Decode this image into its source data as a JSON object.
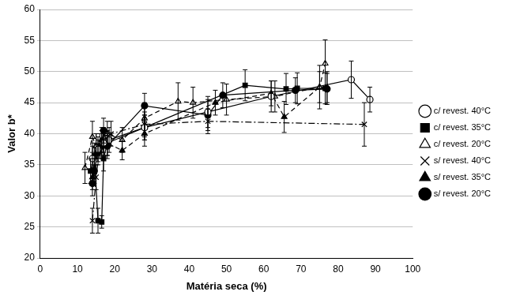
{
  "chart_data": {
    "type": "scatter",
    "x_label": "Matéria seca (%)",
    "y_label": "Valor b*",
    "xlim": [
      0,
      100
    ],
    "xticks": [
      0,
      10,
      20,
      30,
      40,
      50,
      60,
      70,
      80,
      90,
      100
    ],
    "ylim": [
      20,
      60
    ],
    "yticks": [
      20,
      25,
      30,
      35,
      40,
      45,
      50,
      55,
      60
    ],
    "grid": "y",
    "legend": "right",
    "series": [
      {
        "name": "c/ revest. 40°C",
        "color": "#000000",
        "marker": "circle_open",
        "line_style": "solid",
        "x": [
          14,
          15.5,
          17,
          18.5,
          28,
          45,
          62,
          83.5,
          88.5
        ],
        "values": [
          36,
          37.5,
          38.5,
          39,
          41,
          43.5,
          46,
          48.7,
          45.5
        ],
        "errors": [
          2,
          2,
          2,
          2,
          2,
          2.5,
          2.5,
          3,
          2
        ]
      },
      {
        "name": "c/ revest. 35°C",
        "color": "#000000",
        "marker": "square",
        "line_style": "solid",
        "x": [
          13.5,
          14.5,
          15.5,
          16.5,
          17,
          18,
          28,
          55,
          66,
          69,
          76.5
        ],
        "values": [
          34,
          36.5,
          26,
          25.8,
          36,
          38.5,
          41,
          47.8,
          47.2,
          47.3,
          47.3
        ],
        "errors": [
          2,
          2,
          2,
          1,
          2,
          2,
          2,
          2.5,
          2.5,
          2.5,
          2.5
        ]
      },
      {
        "name": "c/ revest. 20°C",
        "color": "#000000",
        "marker": "triangle_open",
        "line_style": "dashed",
        "x": [
          12,
          14,
          15,
          16.5,
          18,
          22,
          28,
          37,
          41,
          50,
          63,
          75,
          76.5
        ],
        "values": [
          34.5,
          39.5,
          38,
          38.5,
          40,
          39,
          42.5,
          45.2,
          45,
          45.5,
          46,
          47.5,
          51.3
        ],
        "errors": [
          2.5,
          2.5,
          2,
          2,
          2,
          2,
          2.5,
          3,
          2.5,
          2.5,
          2.5,
          3.5,
          3.8
        ]
      },
      {
        "name": "s/ revest. 40°C",
        "color": "#000000",
        "marker": "cross",
        "line_style": "dashdot",
        "x": [
          14,
          15,
          16,
          17,
          19,
          28,
          45,
          87
        ],
        "values": [
          26,
          33,
          38,
          39,
          40,
          41.5,
          42,
          41.5
        ],
        "errors": [
          2,
          2,
          2,
          2,
          2,
          2,
          2,
          3.5
        ]
      },
      {
        "name": "s/ revest. 35°C",
        "color": "#000000",
        "marker": "triangle",
        "line_style": "dashed",
        "x": [
          14,
          15,
          16.5,
          18,
          22,
          28,
          47,
          62,
          65.5,
          75,
          77
        ],
        "values": [
          33,
          38,
          39,
          38.5,
          37.3,
          40,
          45,
          46.5,
          42.7,
          47.5,
          47.5
        ],
        "errors": [
          2,
          2,
          2,
          2,
          1.5,
          2,
          2,
          2,
          2.5,
          2.5,
          2.5
        ]
      },
      {
        "name": "s/ revest. 20°C",
        "color": "#000000",
        "marker": "circle",
        "line_style": "solid",
        "x": [
          14,
          14.5,
          15.5,
          16.5,
          17,
          18,
          28,
          45,
          49,
          68.5,
          77
        ],
        "values": [
          32,
          34,
          37,
          38,
          40.5,
          38,
          44.5,
          43,
          46.2,
          47,
          47.2
        ],
        "errors": [
          2,
          2,
          2,
          2,
          2,
          2,
          2,
          2.5,
          2,
          2,
          2.5
        ]
      }
    ]
  }
}
